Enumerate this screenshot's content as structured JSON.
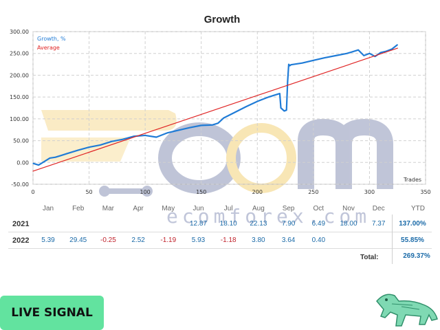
{
  "chart_data": {
    "type": "line",
    "title": "Growth",
    "xlabel": "Trades",
    "ylabel": "",
    "xlim": [
      0,
      350
    ],
    "ylim": [
      -50,
      300
    ],
    "xticks": [
      "0",
      "50",
      "100",
      "150",
      "200",
      "250",
      "300",
      "350"
    ],
    "yticks": [
      "-50.00",
      "0.00",
      "50.00",
      "100.00",
      "150.00",
      "200.00",
      "250.00",
      "300.00"
    ],
    "xtick_values": [
      0,
      50,
      100,
      150,
      200,
      250,
      300,
      350
    ],
    "ytick_values": [
      -50,
      0,
      50,
      100,
      150,
      200,
      250,
      300
    ],
    "legend": [
      "Growth, %",
      "Average"
    ],
    "legend_position": "top-left",
    "grid": true,
    "series": [
      {
        "name": "Growth, %",
        "color": "#1f7bd6",
        "x": [
          0,
          5,
          10,
          15,
          20,
          25,
          30,
          40,
          50,
          60,
          70,
          80,
          90,
          100,
          110,
          120,
          130,
          140,
          150,
          160,
          165,
          170,
          180,
          190,
          200,
          210,
          215,
          220,
          221,
          224,
          226,
          227,
          228,
          229,
          230,
          240,
          250,
          260,
          270,
          280,
          290,
          295,
          300,
          305,
          310,
          315,
          320,
          325
        ],
        "y": [
          -2,
          -6,
          2,
          10,
          12,
          16,
          20,
          28,
          35,
          40,
          48,
          53,
          60,
          62,
          58,
          68,
          74,
          80,
          85,
          86,
          90,
          102,
          115,
          128,
          140,
          150,
          154,
          158,
          125,
          118,
          120,
          185,
          225,
          222,
          224,
          228,
          234,
          240,
          245,
          250,
          258,
          245,
          250,
          243,
          252,
          255,
          260,
          270
        ]
      },
      {
        "name": "Average",
        "color": "#e02424",
        "x": [
          0,
          325
        ],
        "y": [
          -20,
          262
        ]
      }
    ]
  },
  "table": {
    "headers": [
      "Jan",
      "Feb",
      "Mar",
      "Apr",
      "May",
      "Jun",
      "Jul",
      "Aug",
      "Sep",
      "Oct",
      "Nov",
      "Dec",
      "YTD"
    ],
    "rows": [
      {
        "year": "2021",
        "values": [
          "",
          "",
          "",
          "",
          "",
          "12.87",
          "18.10",
          "22.13",
          "7.90",
          "6.49",
          "18.00",
          "7.37"
        ],
        "ytd": "137.00%"
      },
      {
        "year": "2022",
        "values": [
          "5.39",
          "29.45",
          "-0.25",
          "2.52",
          "-1.19",
          "5.93",
          "-1.18",
          "3.80",
          "3.64",
          "0.40",
          "",
          ""
        ],
        "ytd": "55.85%"
      }
    ],
    "total_label": "Total:",
    "total_value": "269.37%"
  },
  "watermark": {
    "text": "ecomforex.com"
  },
  "live_signal": {
    "label": "LIVE SIGNAL",
    "color": "#62e39f"
  },
  "mascot": {
    "icon": "robot-panther-icon"
  }
}
